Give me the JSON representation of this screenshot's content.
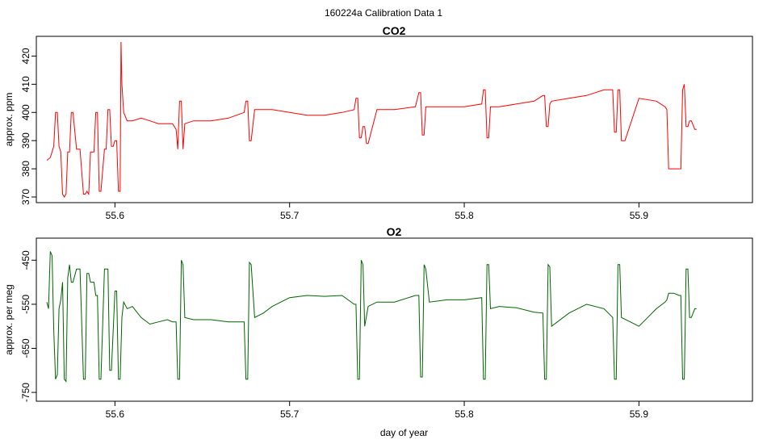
{
  "figure_title": "160224a   Calibration Data 1",
  "colors": {
    "co2": "#ff0000",
    "o2": "#006400",
    "axis": "#000000"
  },
  "chart_data": [
    {
      "type": "line",
      "title": "CO2",
      "xlabel": "",
      "ylabel": "approx. ppm",
      "xlim": [
        55.555,
        55.965
      ],
      "ylim": [
        368,
        427
      ],
      "xticks": [
        55.6,
        55.7,
        55.8,
        55.9
      ],
      "xtick_labels": [
        "55.6",
        "55.7",
        "55.8",
        "55.9"
      ],
      "yticks": [
        370,
        380,
        390,
        400,
        410,
        420
      ],
      "ytick_labels": [
        "370",
        "380",
        "390",
        "400",
        "410",
        "420"
      ],
      "grid": false,
      "series": [
        {
          "color": "#ff0000",
          "x": [
            55.561,
            55.563,
            55.564,
            55.565,
            55.566,
            55.567,
            55.568,
            55.569,
            55.57,
            55.571,
            55.572,
            55.573,
            55.574,
            55.575,
            55.576,
            55.578,
            55.58,
            55.582,
            55.583,
            55.584,
            55.585,
            55.586,
            55.588,
            55.589,
            55.59,
            55.591,
            55.592,
            55.594,
            55.595,
            55.596,
            55.597,
            55.598,
            55.599,
            55.6,
            55.601,
            55.602,
            55.603,
            55.6035,
            55.604,
            55.605,
            55.607,
            55.61,
            55.615,
            55.62,
            55.625,
            55.63,
            55.633,
            55.635,
            55.636,
            55.637,
            55.638,
            55.639,
            55.64,
            55.645,
            55.655,
            55.665,
            55.674,
            55.675,
            55.676,
            55.677,
            55.678,
            55.68,
            55.69,
            55.7,
            55.71,
            55.72,
            55.73,
            55.737,
            55.738,
            55.739,
            55.74,
            55.741,
            55.742,
            55.743,
            55.744,
            55.745,
            55.75,
            55.76,
            55.772,
            55.774,
            55.775,
            55.776,
            55.777,
            55.778,
            55.78,
            55.79,
            55.8,
            55.81,
            55.811,
            55.812,
            55.813,
            55.814,
            55.815,
            55.82,
            55.83,
            55.84,
            55.845,
            55.846,
            55.847,
            55.848,
            55.849,
            55.85,
            55.86,
            55.87,
            55.88,
            55.885,
            55.886,
            55.887,
            55.888,
            55.889,
            55.89,
            55.892,
            55.9,
            55.91,
            55.915,
            55.916,
            55.917,
            55.92,
            55.923,
            55.924,
            55.925,
            55.926,
            55.927,
            55.928,
            55.929,
            55.93,
            55.932,
            55.933
          ],
          "y": [
            383,
            384,
            386,
            388,
            400,
            400,
            388,
            386,
            371,
            370,
            371,
            386,
            386,
            400,
            400,
            387,
            387,
            371,
            371,
            372,
            371,
            386,
            386,
            400,
            400,
            372,
            372,
            387,
            387,
            401,
            401,
            388,
            388,
            390,
            390,
            372,
            372,
            425,
            410,
            400,
            397,
            397,
            398,
            397,
            396,
            396,
            396,
            394,
            387,
            404,
            404,
            387,
            396,
            397,
            397,
            398,
            400,
            404,
            404,
            390,
            390,
            401,
            401,
            400,
            399,
            399,
            400,
            401,
            405,
            405,
            391,
            391,
            395,
            395,
            389,
            389,
            401,
            401,
            402,
            407,
            407,
            392,
            392,
            402,
            402,
            402,
            402,
            403,
            408,
            408,
            391,
            391,
            402,
            402,
            403,
            404,
            406,
            406,
            395,
            395,
            403,
            404,
            405,
            406,
            408,
            408,
            393,
            393,
            408,
            408,
            390,
            390,
            405,
            404,
            402,
            401,
            380,
            380,
            380,
            380,
            408,
            410,
            395,
            395,
            397,
            397,
            394,
            394
          ]
        }
      ]
    },
    {
      "type": "line",
      "title": "O2",
      "xlabel": "day of year",
      "ylabel": "approx. per meg",
      "xlim": [
        55.555,
        55.965
      ],
      "ylim": [
        -770,
        -400
      ],
      "xticks": [
        55.6,
        55.7,
        55.8,
        55.9
      ],
      "xtick_labels": [
        "55.6",
        "55.7",
        "55.8",
        "55.9"
      ],
      "yticks": [
        -750,
        -650,
        -550,
        -450
      ],
      "ytick_labels": [
        "-750",
        "-650",
        "-550",
        "-450"
      ],
      "grid": false,
      "series": [
        {
          "color": "#006400",
          "x": [
            55.561,
            55.562,
            55.563,
            55.564,
            55.565,
            55.566,
            55.567,
            55.568,
            55.569,
            55.57,
            55.571,
            55.572,
            55.573,
            55.574,
            55.575,
            55.576,
            55.578,
            55.58,
            55.582,
            55.583,
            55.584,
            55.585,
            55.586,
            55.588,
            55.589,
            55.59,
            55.591,
            55.592,
            55.594,
            55.595,
            55.596,
            55.597,
            55.598,
            55.6,
            55.601,
            55.602,
            55.603,
            55.604,
            55.605,
            55.607,
            55.61,
            55.615,
            55.62,
            55.625,
            55.63,
            55.633,
            55.635,
            55.636,
            55.637,
            55.638,
            55.639,
            55.64,
            55.645,
            55.655,
            55.665,
            55.674,
            55.675,
            55.676,
            55.677,
            55.678,
            55.68,
            55.685,
            55.69,
            55.7,
            55.71,
            55.72,
            55.73,
            55.737,
            55.738,
            55.739,
            55.74,
            55.741,
            55.742,
            55.743,
            55.745,
            55.75,
            55.76,
            55.772,
            55.774,
            55.775,
            55.776,
            55.777,
            55.778,
            55.78,
            55.79,
            55.8,
            55.81,
            55.811,
            55.812,
            55.813,
            55.814,
            55.815,
            55.82,
            55.83,
            55.84,
            55.845,
            55.846,
            55.847,
            55.848,
            55.849,
            55.85,
            55.86,
            55.87,
            55.88,
            55.885,
            55.886,
            55.887,
            55.888,
            55.889,
            55.89,
            55.895,
            55.9,
            55.905,
            55.91,
            55.915,
            55.916,
            55.917,
            55.92,
            55.923,
            55.924,
            55.925,
            55.926,
            55.927,
            55.928,
            55.929,
            55.93,
            55.932,
            55.933
          ],
          "y": [
            -545,
            -560,
            -430,
            -440,
            -610,
            -720,
            -710,
            -560,
            -540,
            -500,
            -720,
            -725,
            -490,
            -460,
            -500,
            -500,
            -470,
            -470,
            -720,
            -720,
            -480,
            -480,
            -500,
            -500,
            -530,
            -530,
            -720,
            -720,
            -470,
            -470,
            -470,
            -700,
            -700,
            -520,
            -520,
            -720,
            -720,
            -580,
            -545,
            -560,
            -555,
            -580,
            -595,
            -590,
            -585,
            -590,
            -590,
            -720,
            -720,
            -450,
            -460,
            -580,
            -585,
            -585,
            -590,
            -590,
            -720,
            -720,
            -455,
            -460,
            -580,
            -570,
            -555,
            -535,
            -530,
            -532,
            -530,
            -550,
            -550,
            -720,
            -720,
            -450,
            -460,
            -600,
            -555,
            -545,
            -545,
            -530,
            -530,
            -715,
            -715,
            -460,
            -470,
            -545,
            -540,
            -540,
            -535,
            -720,
            -720,
            -460,
            -460,
            -560,
            -555,
            -558,
            -568,
            -570,
            -720,
            -720,
            -460,
            -465,
            -600,
            -570,
            -550,
            -560,
            -580,
            -720,
            -720,
            -460,
            -460,
            -580,
            -590,
            -600,
            -580,
            -560,
            -545,
            -540,
            -525,
            -525,
            -530,
            -530,
            -720,
            -720,
            -470,
            -470,
            -580,
            -580,
            -560,
            -560
          ]
        }
      ]
    }
  ]
}
